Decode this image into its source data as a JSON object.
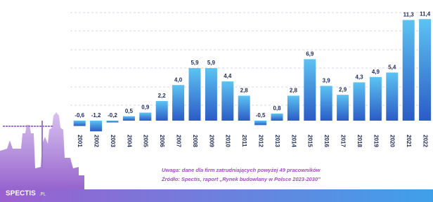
{
  "chart_data": {
    "type": "bar",
    "categories": [
      "2001",
      "2002",
      "2003",
      "2004",
      "2005",
      "2006",
      "2007",
      "2008",
      "2009",
      "2010",
      "2011",
      "2012",
      "2013",
      "2014",
      "2015",
      "2016",
      "2017",
      "2018",
      "2019",
      "2020",
      "2021",
      "2022"
    ],
    "values": [
      -0.6,
      -1.2,
      -0.2,
      0.5,
      0.9,
      2.2,
      4.0,
      5.9,
      5.9,
      4.4,
      2.8,
      -0.5,
      0.8,
      2.8,
      6.9,
      3.9,
      2.9,
      4.3,
      4.9,
      5.4,
      11.3,
      11.4
    ],
    "value_labels": [
      "-0,6",
      "-1,2",
      "-0,2",
      "0,5",
      "0,9",
      "2,2",
      "4,0",
      "5,9",
      "5,9",
      "4,4",
      "2,8",
      "-0,5",
      "0,8",
      "2,8",
      "6,9",
      "3,9",
      "2,9",
      "4,3",
      "4,9",
      "5,4",
      "11,3",
      "11,4"
    ],
    "ylim": [
      -2,
      12
    ],
    "notes": [
      "Uwaga: dane dla firm zatrudniających powyżej 49 pracowników",
      "Źródło: Spectis, raport „Rynek budowlany w Polsce 2023-2030”"
    ],
    "logo": {
      "name": "SPECTIS",
      "suffix": ".PL"
    }
  }
}
